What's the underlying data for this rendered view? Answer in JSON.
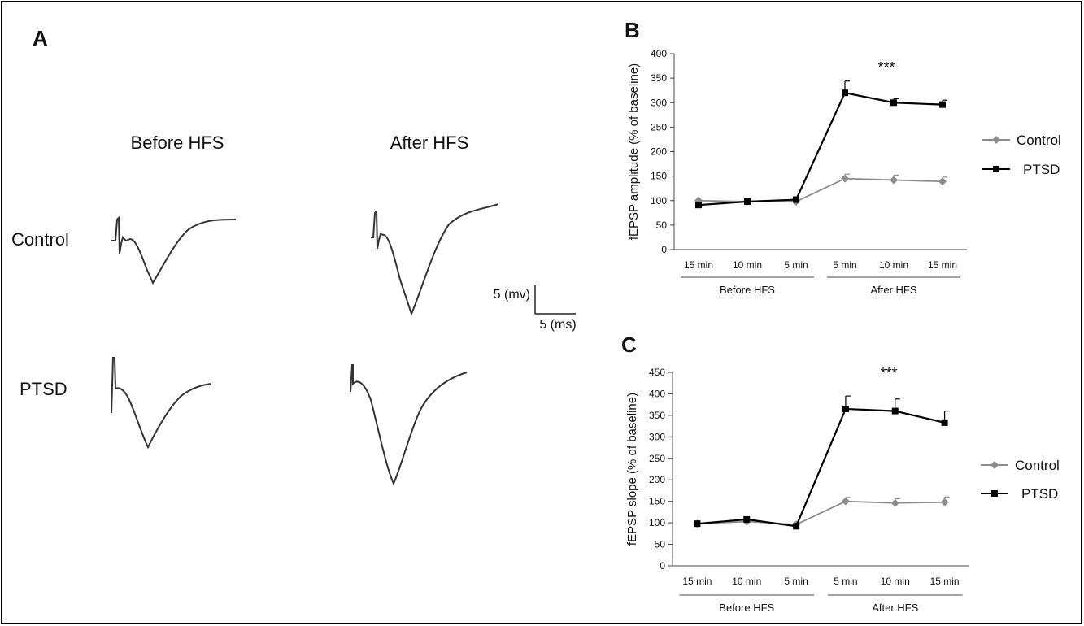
{
  "panel_a": {
    "label": "A",
    "col_before": "Before HFS",
    "col_after": "After HFS",
    "row_control": "Control",
    "row_ptsd": "PTSD",
    "scale_v": "5 (mv)",
    "scale_t": "5 (ms)"
  },
  "colors": {
    "control": "#8c8c8c",
    "ptsd": "#000000",
    "trace": "#333333"
  },
  "chart_data": [
    {
      "panel": "B",
      "type": "line",
      "ylabel": "fEPSP amplitude (% of baseline)",
      "categories": [
        "15 min",
        "10 min",
        "5 min",
        "5 min",
        "10 min",
        "15 min"
      ],
      "groups": [
        {
          "label": "Before HFS",
          "from": 0,
          "to": 2
        },
        {
          "label": "After HFS",
          "from": 3,
          "to": 5
        }
      ],
      "ylim": [
        0,
        400
      ],
      "yticks": [
        "0",
        "50",
        "100",
        "150",
        "200",
        "250",
        "300",
        "350",
        "400"
      ],
      "annotation": "***",
      "legend_position": "right",
      "series": [
        {
          "name": "Control",
          "color": "#8c8c8c",
          "marker": "diamond",
          "values": [
            100,
            98,
            98,
            145,
            142,
            139
          ],
          "errors": [
            0,
            0,
            0,
            9,
            10,
            9
          ]
        },
        {
          "name": "PTSD",
          "color": "#000000",
          "marker": "square",
          "values": [
            91,
            98,
            102,
            320,
            300,
            296
          ],
          "errors": [
            0,
            0,
            0,
            24,
            8,
            9
          ]
        }
      ]
    },
    {
      "panel": "C",
      "type": "line",
      "ylabel": "fEPSP slope (% of baseline)",
      "categories": [
        "15 min",
        "10 min",
        "5 min",
        "5 min",
        "10 min",
        "15 min"
      ],
      "groups": [
        {
          "label": "Before HFS",
          "from": 0,
          "to": 2
        },
        {
          "label": "After HFS",
          "from": 3,
          "to": 5
        }
      ],
      "ylim": [
        0,
        450
      ],
      "yticks": [
        "0",
        "50",
        "100",
        "150",
        "200",
        "250",
        "300",
        "350",
        "400",
        "450"
      ],
      "annotation": "***",
      "legend_position": "right",
      "series": [
        {
          "name": "Control",
          "color": "#8c8c8c",
          "marker": "diamond",
          "values": [
            98,
            103,
            96,
            150,
            146,
            148
          ],
          "errors": [
            0,
            0,
            0,
            9,
            10,
            12
          ]
        },
        {
          "name": "PTSD",
          "color": "#000000",
          "marker": "square",
          "values": [
            98,
            108,
            92,
            365,
            360,
            333
          ],
          "errors": [
            0,
            0,
            0,
            30,
            28,
            27
          ]
        }
      ]
    }
  ]
}
